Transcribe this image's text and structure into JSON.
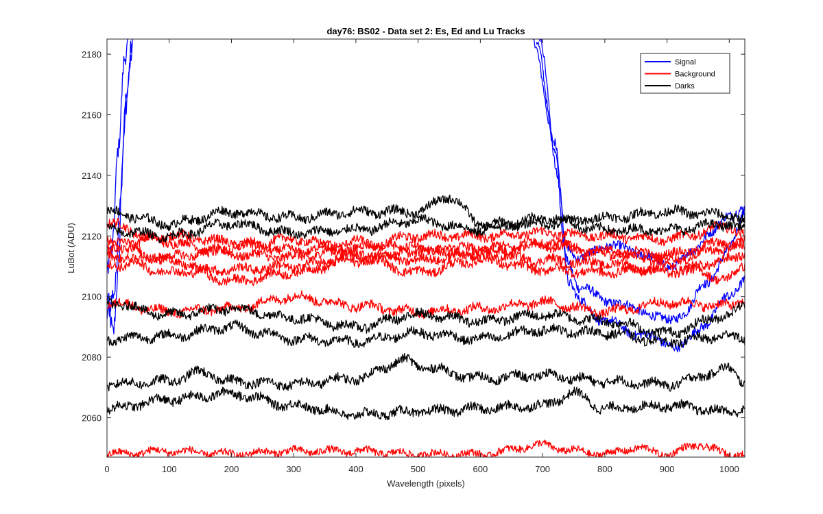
{
  "chart_data": {
    "type": "line",
    "title": "day76: BS02 - Data set 2: Es, Ed and Lu Tracks",
    "xlabel": "Wavelength (pixels)",
    "ylabel": "LuBot (ADU)",
    "xlim": [
      0,
      1025
    ],
    "ylim": [
      2047,
      2185
    ],
    "xticks": [
      0,
      100,
      200,
      300,
      400,
      500,
      600,
      700,
      800,
      900,
      1000
    ],
    "yticks": [
      2060,
      2080,
      2100,
      2120,
      2140,
      2160,
      2180
    ],
    "grid": false,
    "legend_position": "top-right",
    "legend": [
      {
        "name": "Signal",
        "color": "#0000ff"
      },
      {
        "name": "Background",
        "color": "#ff0000"
      },
      {
        "name": "Darks",
        "color": "#000000"
      }
    ],
    "series": [
      {
        "group": "Signal",
        "color": "#0000ff",
        "noise": 3.5,
        "points": [
          [
            0,
            2100
          ],
          [
            10,
            2086
          ],
          [
            18,
            2105
          ],
          [
            25,
            2145
          ],
          [
            32,
            2170
          ],
          [
            42,
            2185
          ]
        ]
      },
      {
        "group": "Signal",
        "color": "#0000ff",
        "noise": 3.5,
        "points": [
          [
            0,
            2092
          ],
          [
            12,
            2100
          ],
          [
            22,
            2135
          ],
          [
            30,
            2165
          ],
          [
            40,
            2185
          ]
        ]
      },
      {
        "group": "Signal",
        "color": "#0000ff",
        "noise": 3.0,
        "points": [
          [
            0,
            2108
          ],
          [
            8,
            2115
          ],
          [
            18,
            2150
          ],
          [
            28,
            2180
          ],
          [
            35,
            2185
          ]
        ]
      },
      {
        "group": "Signal",
        "color": "#0000ff",
        "noise": 1.5,
        "points": [
          [
            685,
            2185
          ],
          [
            720,
            2150
          ],
          [
            740,
            2112
          ],
          [
            760,
            2103
          ],
          [
            800,
            2099
          ],
          [
            850,
            2096
          ],
          [
            900,
            2092
          ],
          [
            930,
            2095
          ],
          [
            960,
            2104
          ],
          [
            1000,
            2115
          ],
          [
            1025,
            2128
          ]
        ]
      },
      {
        "group": "Signal",
        "color": "#0000ff",
        "noise": 1.5,
        "points": [
          [
            690,
            2185
          ],
          [
            720,
            2148
          ],
          [
            735,
            2118
          ],
          [
            760,
            2112
          ],
          [
            800,
            2117
          ],
          [
            850,
            2115
          ],
          [
            900,
            2110
          ],
          [
            940,
            2114
          ],
          [
            970,
            2122
          ],
          [
            1000,
            2126
          ],
          [
            1025,
            2130
          ]
        ]
      },
      {
        "group": "Signal",
        "color": "#0000ff",
        "noise": 1.5,
        "points": [
          [
            695,
            2185
          ],
          [
            725,
            2140
          ],
          [
            742,
            2105
          ],
          [
            760,
            2098
          ],
          [
            800,
            2092
          ],
          [
            850,
            2088
          ],
          [
            900,
            2085
          ],
          [
            920,
            2083
          ],
          [
            960,
            2091
          ],
          [
            1000,
            2100
          ],
          [
            1025,
            2106
          ]
        ]
      },
      {
        "group": "Background",
        "color": "#ff0000",
        "noise": 1.5,
        "points": [
          [
            0,
            2124
          ],
          [
            100,
            2118
          ],
          [
            200,
            2114
          ],
          [
            300,
            2113
          ],
          [
            400,
            2116
          ],
          [
            500,
            2120
          ],
          [
            600,
            2120
          ],
          [
            700,
            2121
          ],
          [
            800,
            2120
          ],
          [
            900,
            2119
          ],
          [
            1000,
            2123
          ],
          [
            1025,
            2121
          ]
        ]
      },
      {
        "group": "Background",
        "color": "#ff0000",
        "noise": 1.5,
        "points": [
          [
            0,
            2115
          ],
          [
            100,
            2120
          ],
          [
            200,
            2118
          ],
          [
            300,
            2115
          ],
          [
            400,
            2118
          ],
          [
            500,
            2115
          ],
          [
            600,
            2116
          ],
          [
            700,
            2117
          ],
          [
            800,
            2115
          ],
          [
            900,
            2114
          ],
          [
            1000,
            2118
          ],
          [
            1025,
            2116
          ]
        ]
      },
      {
        "group": "Background",
        "color": "#ff0000",
        "noise": 1.5,
        "points": [
          [
            0,
            2110
          ],
          [
            100,
            2113
          ],
          [
            200,
            2116
          ],
          [
            300,
            2119
          ],
          [
            400,
            2114
          ],
          [
            500,
            2112
          ],
          [
            600,
            2114
          ],
          [
            700,
            2118
          ],
          [
            800,
            2114
          ],
          [
            900,
            2112
          ],
          [
            1000,
            2116
          ],
          [
            1025,
            2118
          ]
        ]
      },
      {
        "group": "Background",
        "color": "#ff0000",
        "noise": 1.5,
        "points": [
          [
            0,
            2114
          ],
          [
            100,
            2108
          ],
          [
            200,
            2109
          ],
          [
            300,
            2110
          ],
          [
            400,
            2113
          ],
          [
            500,
            2108
          ],
          [
            600,
            2112
          ],
          [
            700,
            2109
          ],
          [
            800,
            2108
          ],
          [
            900,
            2110
          ],
          [
            1000,
            2106
          ],
          [
            1025,
            2110
          ]
        ]
      },
      {
        "group": "Background",
        "color": "#ff0000",
        "noise": 1.5,
        "points": [
          [
            0,
            2119
          ],
          [
            100,
            2112
          ],
          [
            200,
            2105
          ],
          [
            300,
            2108
          ],
          [
            400,
            2112
          ],
          [
            500,
            2116
          ],
          [
            600,
            2114
          ],
          [
            700,
            2112
          ],
          [
            800,
            2111
          ],
          [
            900,
            2108
          ],
          [
            1000,
            2112
          ],
          [
            1025,
            2114
          ]
        ]
      },
      {
        "group": "Background",
        "color": "#ff0000",
        "noise": 1.5,
        "points": [
          [
            0,
            2098
          ],
          [
            100,
            2095
          ],
          [
            200,
            2096
          ],
          [
            300,
            2100
          ],
          [
            400,
            2097
          ],
          [
            500,
            2095
          ],
          [
            600,
            2096
          ],
          [
            700,
            2098
          ],
          [
            800,
            2095
          ],
          [
            900,
            2098
          ],
          [
            1000,
            2097
          ],
          [
            1025,
            2099
          ]
        ]
      },
      {
        "group": "Background",
        "color": "#ff0000",
        "noise": 1.2,
        "points": [
          [
            0,
            2048
          ],
          [
            100,
            2049
          ],
          [
            200,
            2048
          ],
          [
            300,
            2049
          ],
          [
            400,
            2049
          ],
          [
            500,
            2048
          ],
          [
            600,
            2048
          ],
          [
            700,
            2051
          ],
          [
            750,
            2049
          ],
          [
            800,
            2048
          ],
          [
            850,
            2050
          ],
          [
            900,
            2048
          ],
          [
            950,
            2051
          ],
          [
            1000,
            2048
          ],
          [
            1025,
            2048
          ]
        ]
      },
      {
        "group": "Darks",
        "color": "#000000",
        "noise": 1.5,
        "points": [
          [
            0,
            2128
          ],
          [
            100,
            2124
          ],
          [
            200,
            2128
          ],
          [
            300,
            2126
          ],
          [
            400,
            2128
          ],
          [
            500,
            2128
          ],
          [
            550,
            2133
          ],
          [
            600,
            2124
          ],
          [
            700,
            2124
          ],
          [
            800,
            2126
          ],
          [
            900,
            2128
          ],
          [
            1000,
            2127
          ],
          [
            1025,
            2125
          ]
        ]
      },
      {
        "group": "Darks",
        "color": "#000000",
        "noise": 1.5,
        "points": [
          [
            0,
            2122
          ],
          [
            100,
            2120
          ],
          [
            200,
            2124
          ],
          [
            300,
            2121
          ],
          [
            400,
            2122
          ],
          [
            500,
            2125
          ],
          [
            600,
            2122
          ],
          [
            700,
            2126
          ],
          [
            800,
            2122
          ],
          [
            900,
            2122
          ],
          [
            1000,
            2124
          ],
          [
            1025,
            2122
          ]
        ]
      },
      {
        "group": "Darks",
        "color": "#000000",
        "noise": 1.5,
        "points": [
          [
            0,
            2098
          ],
          [
            100,
            2094
          ],
          [
            200,
            2096
          ],
          [
            300,
            2093
          ],
          [
            400,
            2090
          ],
          [
            500,
            2094
          ],
          [
            600,
            2092
          ],
          [
            700,
            2094
          ],
          [
            800,
            2092
          ],
          [
            900,
            2088
          ],
          [
            1000,
            2094
          ],
          [
            1025,
            2097
          ]
        ]
      },
      {
        "group": "Darks",
        "color": "#000000",
        "noise": 1.5,
        "points": [
          [
            0,
            2086
          ],
          [
            100,
            2087
          ],
          [
            200,
            2090
          ],
          [
            250,
            2088
          ],
          [
            300,
            2086
          ],
          [
            400,
            2085
          ],
          [
            500,
            2088
          ],
          [
            600,
            2086
          ],
          [
            700,
            2089
          ],
          [
            800,
            2088
          ],
          [
            900,
            2085
          ],
          [
            1000,
            2087
          ],
          [
            1025,
            2086
          ]
        ]
      },
      {
        "group": "Darks",
        "color": "#000000",
        "noise": 1.5,
        "points": [
          [
            0,
            2071
          ],
          [
            100,
            2072
          ],
          [
            150,
            2075
          ],
          [
            200,
            2072
          ],
          [
            300,
            2071
          ],
          [
            400,
            2073
          ],
          [
            480,
            2079
          ],
          [
            500,
            2077
          ],
          [
            600,
            2073
          ],
          [
            700,
            2074
          ],
          [
            800,
            2072
          ],
          [
            900,
            2071
          ],
          [
            1000,
            2076
          ],
          [
            1025,
            2072
          ]
        ]
      },
      {
        "group": "Darks",
        "color": "#000000",
        "noise": 1.5,
        "points": [
          [
            0,
            2063
          ],
          [
            100,
            2066
          ],
          [
            200,
            2068
          ],
          [
            300,
            2064
          ],
          [
            400,
            2061
          ],
          [
            500,
            2062
          ],
          [
            600,
            2063
          ],
          [
            700,
            2064
          ],
          [
            750,
            2068
          ],
          [
            800,
            2063
          ],
          [
            900,
            2064
          ],
          [
            1000,
            2062
          ],
          [
            1025,
            2063
          ]
        ]
      }
    ]
  }
}
